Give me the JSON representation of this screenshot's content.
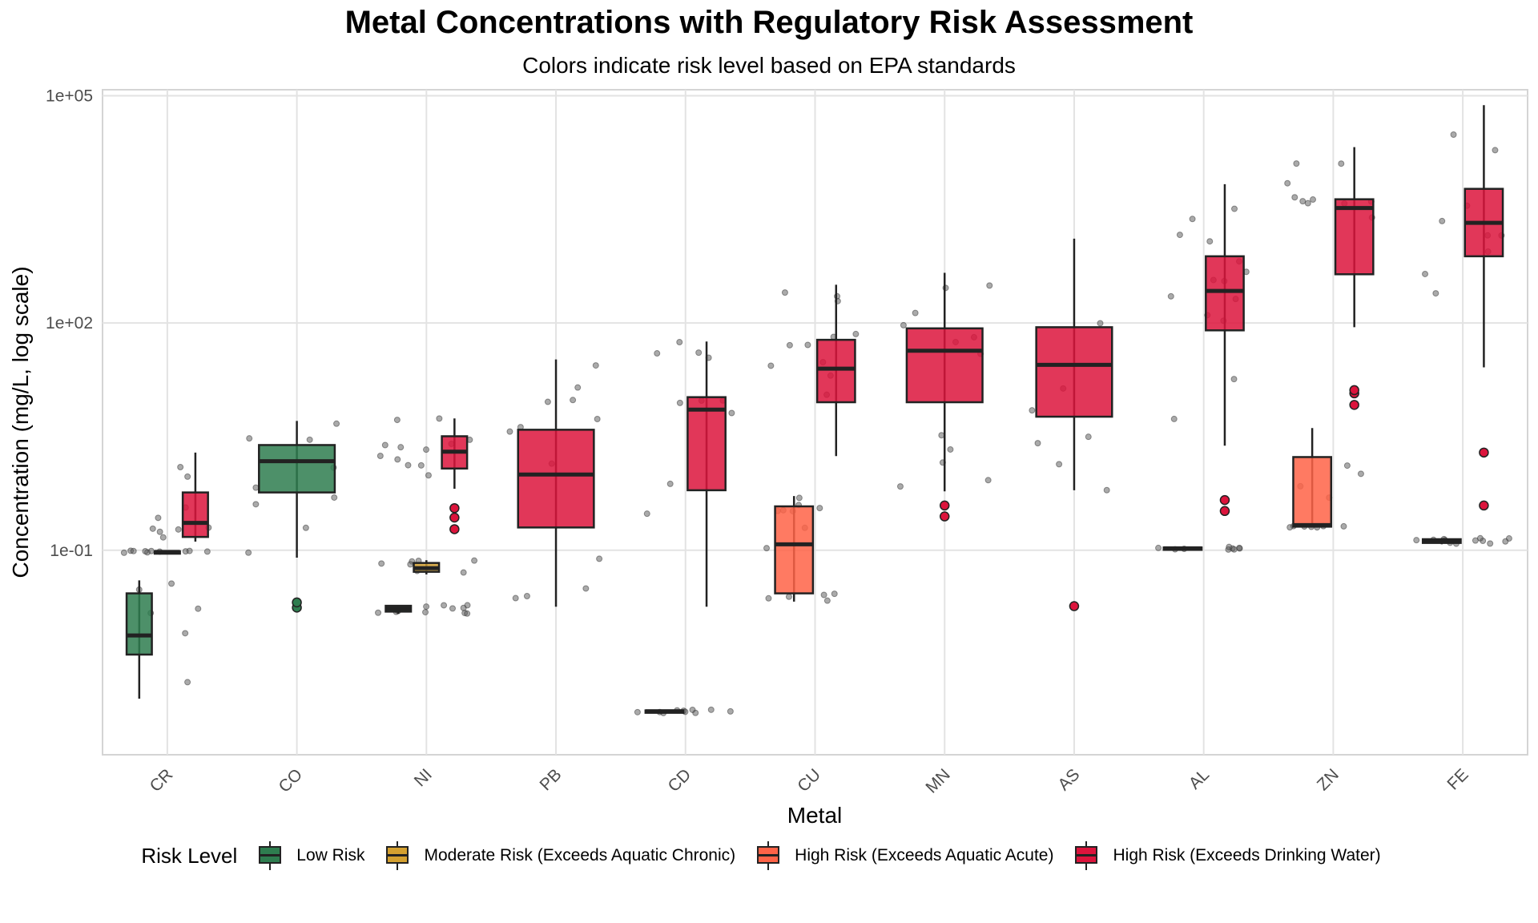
{
  "chart_data": {
    "type": "boxplot",
    "title": "Metal Concentrations with Regulatory Risk Assessment",
    "subtitle": "Colors indicate risk level based on EPA standards",
    "xlabel": "Metal",
    "ylabel": "Concentration (mg/L, log scale)",
    "y_scale": "log10",
    "ylim": [
      0.0002,
      120000
    ],
    "y_ticks": [
      0.1,
      100,
      100000
    ],
    "y_tick_labels": [
      "1e-01",
      "1e+02",
      "1e+05"
    ],
    "categories": [
      "CR",
      "CO",
      "NI",
      "PB",
      "CD",
      "CU",
      "MN",
      "AS",
      "AL",
      "ZN",
      "FE"
    ],
    "grid": true,
    "legend_position": "bottom",
    "legend_title": "Risk Level",
    "risk_levels": [
      {
        "key": "low",
        "name": "Low Risk",
        "color": "#2E7D4F"
      },
      {
        "key": "moderate",
        "name": "Moderate Risk (Exceeds Aquatic Chronic)",
        "color": "#D4A030"
      },
      {
        "key": "acute",
        "name": "High Risk (Exceeds Aquatic Acute)",
        "color": "#FF6347"
      },
      {
        "key": "drinking",
        "name": "High Risk (Exceeds Drinking Water)",
        "color": "#DC143C"
      }
    ],
    "boxes": [
      {
        "metal": "CR",
        "risk": "low",
        "min": 0.0011,
        "q1": 0.0042,
        "median": 0.0075,
        "q3": 0.027,
        "max": 0.04,
        "outliers": []
      },
      {
        "metal": "CR",
        "risk": "moderate",
        "min": 0.091,
        "q1": 0.093,
        "median": 0.095,
        "q3": 0.097,
        "max": 0.099,
        "outliers": []
      },
      {
        "metal": "CR",
        "risk": "drinking",
        "min": 0.13,
        "q1": 0.15,
        "median": 0.23,
        "q3": 0.58,
        "max": 1.95,
        "outliers": []
      },
      {
        "metal": "CO",
        "risk": "low",
        "min": 0.08,
        "q1": 0.58,
        "median": 1.5,
        "q3": 2.45,
        "max": 5.1,
        "outliers": [
          0.0175,
          0.0205
        ]
      },
      {
        "metal": "NI",
        "risk": "low",
        "min": 0.0145,
        "q1": 0.0155,
        "median": 0.017,
        "q3": 0.0185,
        "max": 0.019,
        "outliers": []
      },
      {
        "metal": "NI",
        "risk": "moderate",
        "min": 0.048,
        "q1": 0.052,
        "median": 0.058,
        "q3": 0.068,
        "max": 0.074,
        "outliers": []
      },
      {
        "metal": "NI",
        "risk": "drinking",
        "min": 0.65,
        "q1": 1.2,
        "median": 2.0,
        "q3": 3.2,
        "max": 5.5,
        "outliers": [
          0.19,
          0.27,
          0.36
        ]
      },
      {
        "metal": "PB",
        "risk": "drinking",
        "min": 0.018,
        "q1": 0.2,
        "median": 1.0,
        "q3": 3.9,
        "max": 33,
        "outliers": []
      },
      {
        "metal": "CD",
        "risk": "low",
        "min": 0.00071,
        "q1": 0.00073,
        "median": 0.00075,
        "q3": 0.00077,
        "max": 0.00079,
        "outliers": []
      },
      {
        "metal": "CD",
        "risk": "drinking",
        "min": 0.018,
        "q1": 0.62,
        "median": 7.2,
        "q3": 10.5,
        "max": 57,
        "outliers": []
      },
      {
        "metal": "CU",
        "risk": "acute",
        "min": 0.021,
        "q1": 0.027,
        "median": 0.12,
        "q3": 0.38,
        "max": 0.52,
        "outliers": []
      },
      {
        "metal": "CU",
        "risk": "drinking",
        "min": 1.75,
        "q1": 9.0,
        "median": 25,
        "q3": 60,
        "max": 320,
        "outliers": []
      },
      {
        "metal": "MN",
        "risk": "drinking",
        "min": 0.6,
        "q1": 9.0,
        "median": 43,
        "q3": 85,
        "max": 460,
        "outliers": [
          0.28,
          0.39
        ]
      },
      {
        "metal": "AS",
        "risk": "drinking",
        "min": 0.62,
        "q1": 5.8,
        "median": 28,
        "q3": 88,
        "max": 1300,
        "outliers": [
          0.0183
        ]
      },
      {
        "metal": "AL",
        "risk": "low",
        "min": 0.1,
        "q1": 0.103,
        "median": 0.106,
        "q3": 0.109,
        "max": 0.111,
        "outliers": []
      },
      {
        "metal": "AL",
        "risk": "drinking",
        "min": 2.4,
        "q1": 80,
        "median": 265,
        "q3": 760,
        "max": 6800,
        "outliers": [
          0.33,
          0.46
        ]
      },
      {
        "metal": "ZN",
        "risk": "acute",
        "min": 0.2,
        "q1": 0.205,
        "median": 0.215,
        "q3": 1.7,
        "max": 4.1,
        "outliers": []
      },
      {
        "metal": "ZN",
        "risk": "drinking",
        "min": 88,
        "q1": 440,
        "median": 3300,
        "q3": 4300,
        "max": 21000,
        "outliers": [
          8.3,
          11.8,
          13.0
        ]
      },
      {
        "metal": "FE",
        "risk": "low",
        "min": 0.12,
        "q1": 0.125,
        "median": 0.133,
        "q3": 0.14,
        "max": 0.145,
        "outliers": []
      },
      {
        "metal": "FE",
        "risk": "drinking",
        "min": 26,
        "q1": 760,
        "median": 2100,
        "q3": 5900,
        "max": 75000,
        "outliers": [
          0.39,
          1.95
        ]
      }
    ]
  }
}
